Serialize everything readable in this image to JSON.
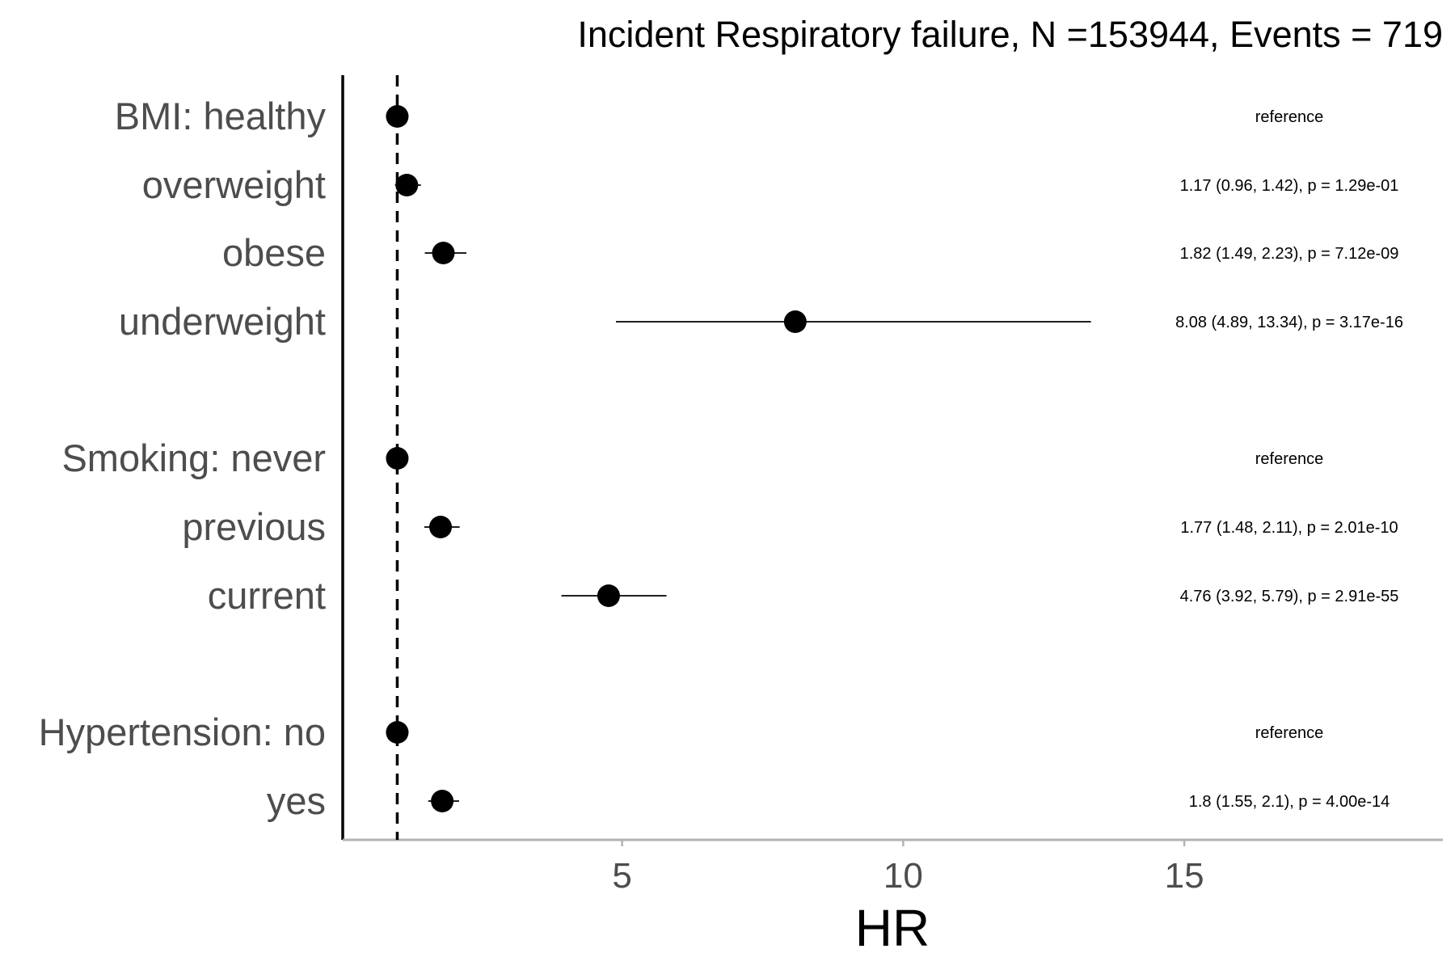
{
  "chart_data": {
    "type": "scatter",
    "subtype": "forest-plot",
    "title": "Incident Respiratory failure, N =153944, Events = 719",
    "xlabel": "HR",
    "ylabel": "",
    "xlim": [
      0.03,
      19.6
    ],
    "xticks": [
      5,
      10,
      15
    ],
    "reference_line": 1,
    "grid": false,
    "legend": "none",
    "rows": [
      {
        "label": "BMI: healthy",
        "hr": 1,
        "lo": null,
        "hi": null,
        "annotation": "reference"
      },
      {
        "label": "overweight",
        "hr": 1.17,
        "lo": 0.96,
        "hi": 1.42,
        "annotation": "1.17 (0.96, 1.42), p = 1.29e-01"
      },
      {
        "label": "obese",
        "hr": 1.82,
        "lo": 1.49,
        "hi": 2.23,
        "annotation": "1.82 (1.49, 2.23), p = 7.12e-09"
      },
      {
        "label": "underweight",
        "hr": 8.08,
        "lo": 4.89,
        "hi": 13.34,
        "annotation": "8.08 (4.89, 13.34), p = 3.17e-16"
      },
      {
        "label": "Smoking: never",
        "hr": 1,
        "lo": null,
        "hi": null,
        "annotation": "reference"
      },
      {
        "label": "previous",
        "hr": 1.77,
        "lo": 1.48,
        "hi": 2.11,
        "annotation": "1.77 (1.48, 2.11), p = 2.01e-10"
      },
      {
        "label": "current",
        "hr": 4.76,
        "lo": 3.92,
        "hi": 5.79,
        "annotation": "4.76 (3.92, 5.79), p = 2.91e-55"
      },
      {
        "label": "Hypertension: no",
        "hr": 1,
        "lo": null,
        "hi": null,
        "annotation": "reference"
      },
      {
        "label": "yes",
        "hr": 1.8,
        "lo": 1.55,
        "hi": 2.1,
        "annotation": "1.8 (1.55, 2.1), p = 4.00e-14"
      }
    ]
  }
}
